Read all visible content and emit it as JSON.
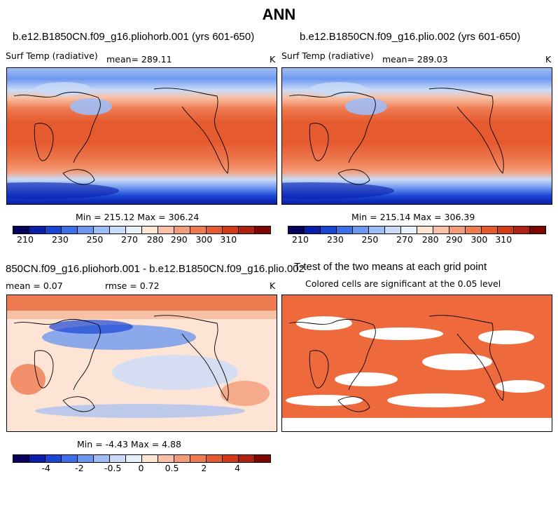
{
  "page_title": "ANN",
  "panels": {
    "top_left": {
      "title": "b.e12.B1850CN.f09_g16.pliohorb.001 (yrs 601-650)",
      "variable": "Surf Temp (radiative)",
      "mean_text": "mean= 289.11",
      "units": "K",
      "stats": "Min = 215.12 Max = 306.24"
    },
    "top_right": {
      "title": "b.e12.B1850CN.f09_g16.plio.002 (yrs 601-650)",
      "variable": "Surf Temp (radiative)",
      "mean_text": "mean= 289.03",
      "units": "K",
      "stats": "Min = 215.14 Max = 306.39"
    },
    "bottom_left": {
      "title": "850CN.f09_g16.pliohorb.001 - b.e12.B1850CN.f09_g16.plio.002",
      "mean_text": "mean =    0.07",
      "rmse_text": "rmse =    0.72",
      "units": "K",
      "stats": "Min =  -4.43 Max =   4.88"
    },
    "bottom_right": {
      "title": "T-test of the two means at each grid point",
      "subtitle": "Colored cells are significant at the 0.05 level"
    }
  },
  "colorbars": {
    "absolute": {
      "ticks": [
        "210",
        "230",
        "250",
        "270",
        "280",
        "290",
        "300",
        "310"
      ],
      "colors": [
        "#08005c",
        "#0a1ea8",
        "#1a46d6",
        "#3c6fe8",
        "#6e98f0",
        "#9fbdf5",
        "#c9dbf8",
        "#e8f0fb",
        "#fde4d4",
        "#f8c0a4",
        "#f39c78",
        "#ee7a50",
        "#e65a30",
        "#d23a18",
        "#b02010",
        "#7e0800"
      ]
    },
    "difference": {
      "ticks": [
        "-4",
        "-2",
        "-0.5",
        "0",
        "0.5",
        "2",
        "4"
      ],
      "colors": [
        "#08005c",
        "#0a1ea8",
        "#1a46d6",
        "#3c6fe8",
        "#6e98f0",
        "#9fbdf5",
        "#c9dbf8",
        "#e8f0fb",
        "#fde4d4",
        "#f8c0a4",
        "#f39c78",
        "#ee7a50",
        "#e65a30",
        "#d23a18",
        "#b02010",
        "#7e0800"
      ]
    }
  },
  "colors": {
    "significant": "#ee6a3c"
  }
}
